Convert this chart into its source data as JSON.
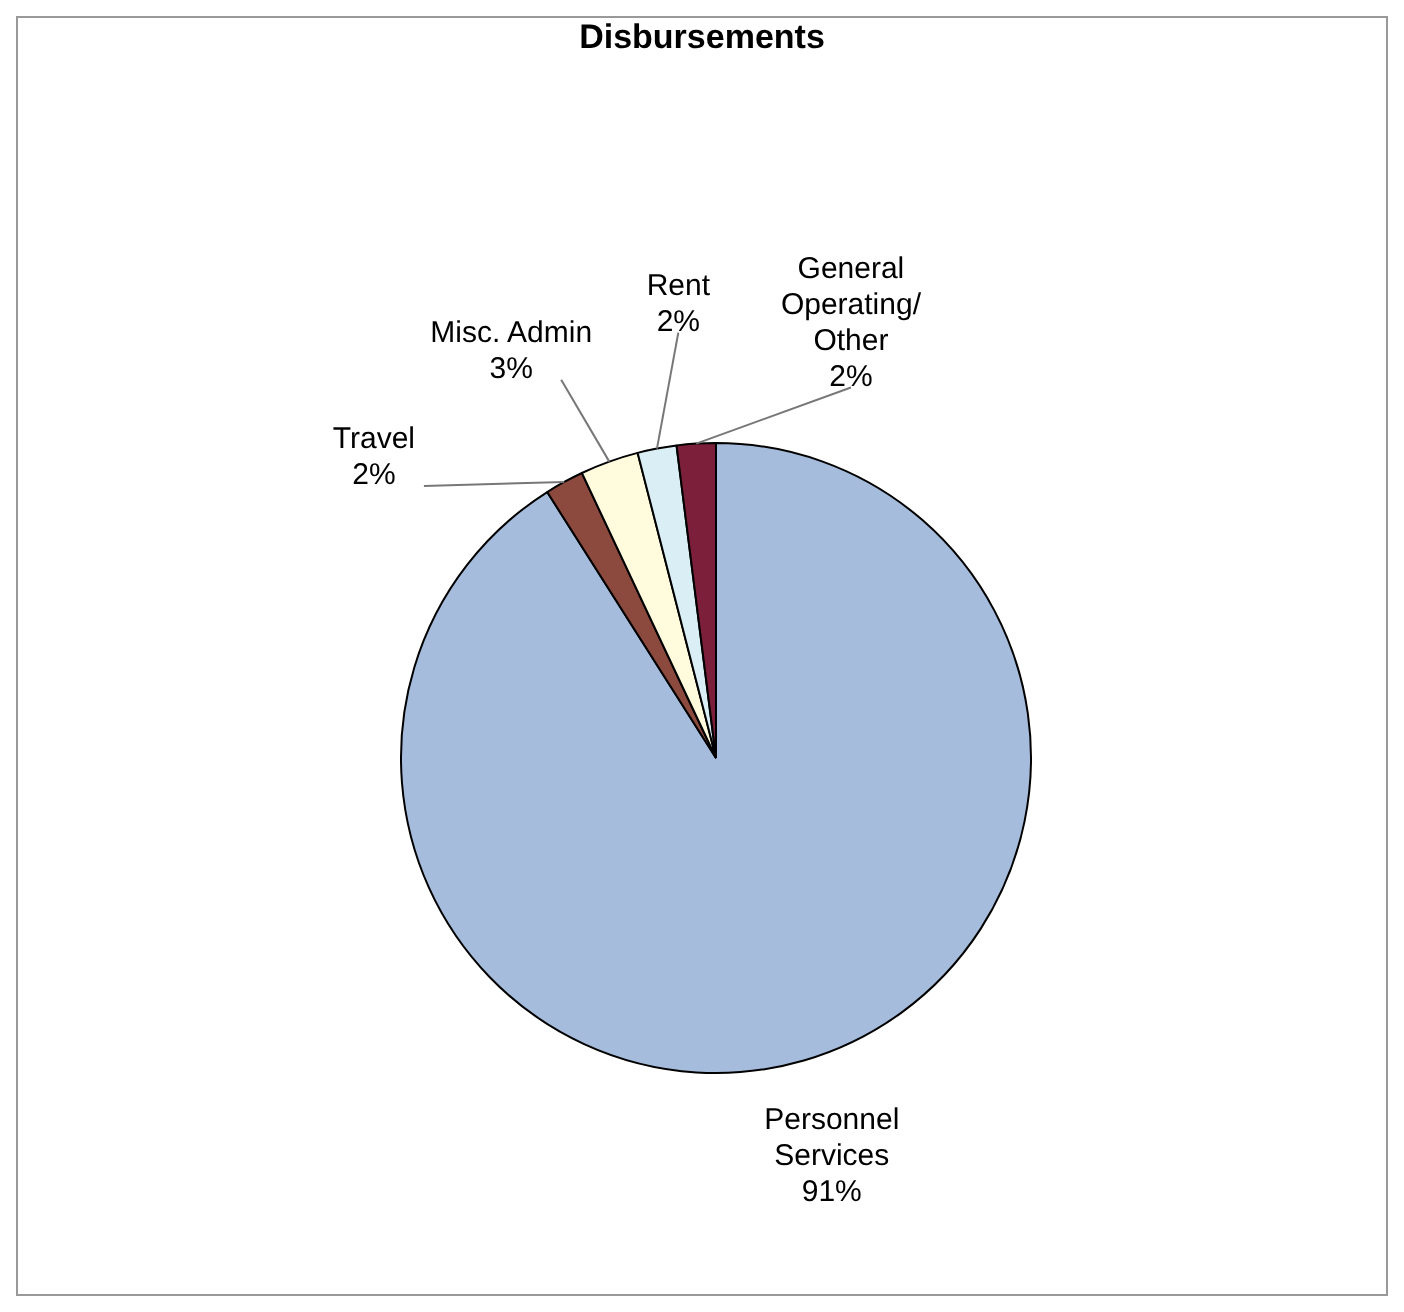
{
  "chart_data": {
    "type": "pie",
    "title": "Disbursements",
    "categories": [
      "Personnel Services",
      "Travel",
      "Misc. Admin",
      "Rent",
      "General Operating/Other"
    ],
    "values": [
      91,
      2,
      3,
      2,
      2
    ],
    "value_labels": [
      "91%",
      "2%",
      "3%",
      "2%",
      "2%"
    ],
    "colors": [
      "#a6bcdc",
      "#8c4a3e",
      "#fffbdc",
      "#d9eef5",
      "#7b1f3b"
    ],
    "legend": false
  }
}
